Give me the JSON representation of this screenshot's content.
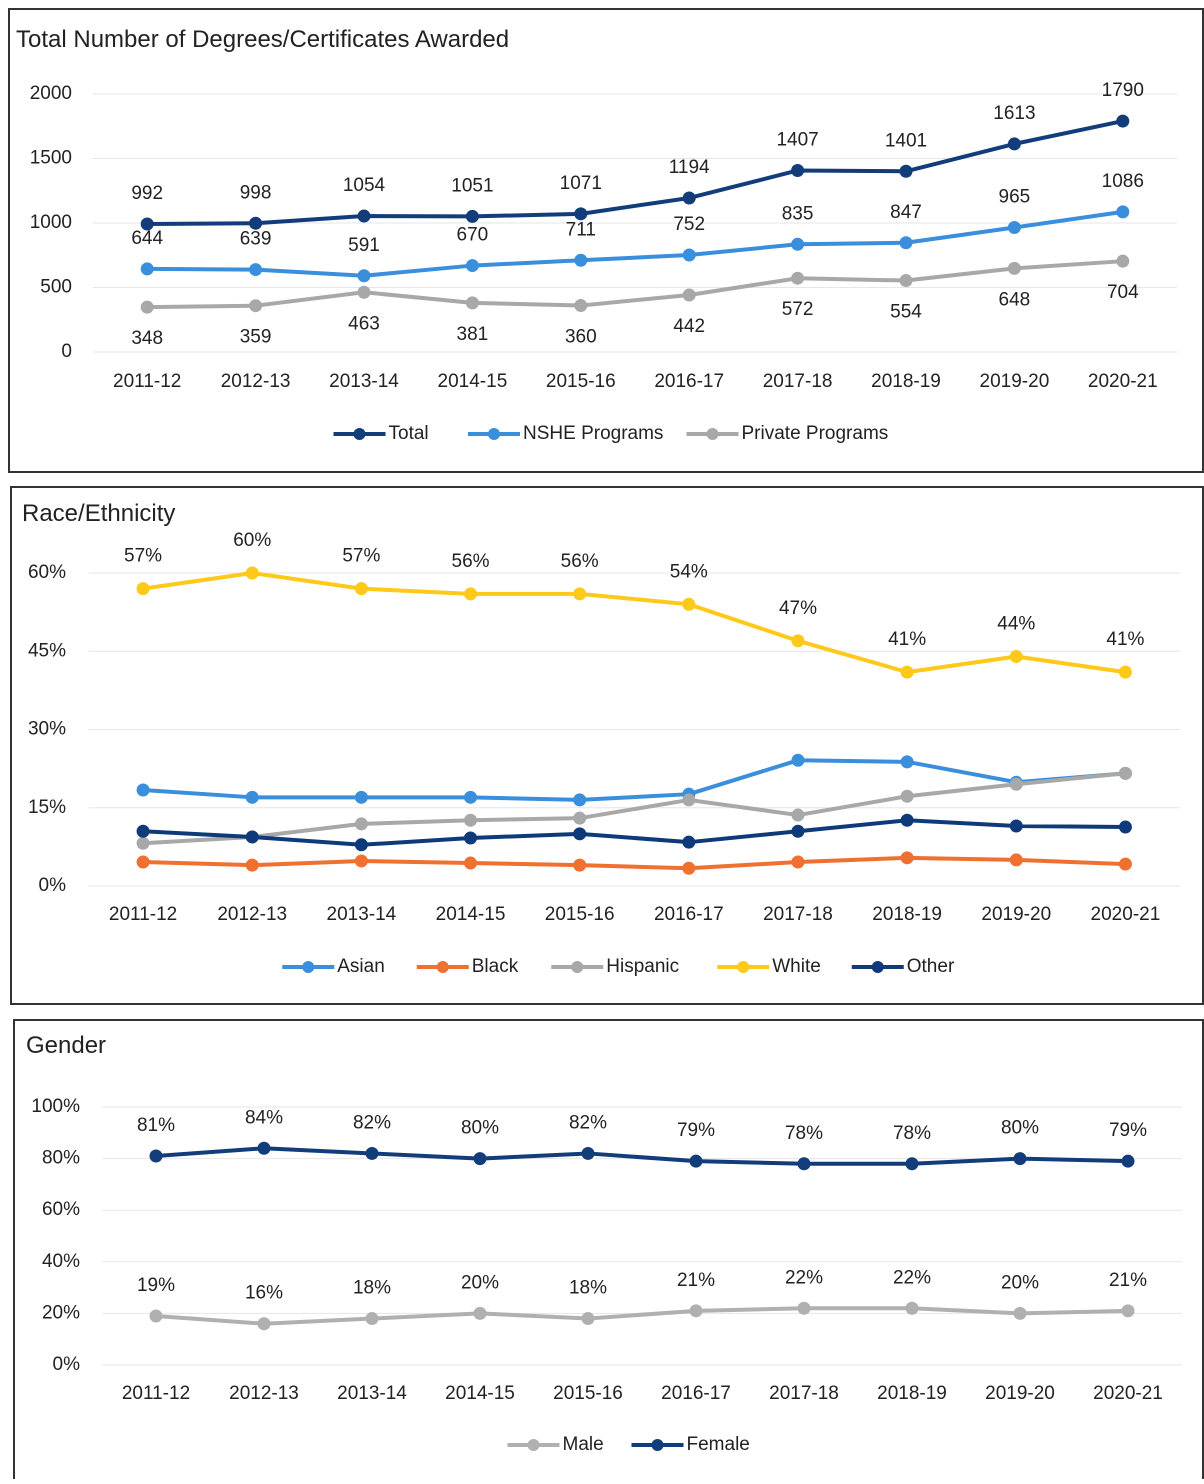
{
  "chart_data": [
    {
      "type": "line",
      "title": "Total Number of Degrees/Certificates Awarded",
      "categories": [
        "2011-12",
        "2012-13",
        "2013-14",
        "2014-15",
        "2015-16",
        "2016-17",
        "2017-18",
        "2018-19",
        "2019-20",
        "2020-21"
      ],
      "series": [
        {
          "name": "Total",
          "color": "#123d7a",
          "values": [
            992,
            998,
            1054,
            1051,
            1071,
            1194,
            1407,
            1401,
            1613,
            1790
          ]
        },
        {
          "name": "NSHE Programs",
          "color": "#3a8fdc",
          "values": [
            644,
            639,
            591,
            670,
            711,
            752,
            835,
            847,
            965,
            1086
          ]
        },
        {
          "name": "Private Programs",
          "color": "#a8a8a8",
          "values": [
            348,
            359,
            463,
            381,
            360,
            442,
            572,
            554,
            648,
            704
          ]
        }
      ],
      "ylim": [
        0,
        2000
      ],
      "yticks": [
        0,
        500,
        1000,
        1500,
        2000
      ],
      "grid": true,
      "legend": "bottom"
    },
    {
      "type": "line",
      "title": "Race/Ethnicity",
      "categories": [
        "2011-12",
        "2012-13",
        "2013-14",
        "2014-15",
        "2015-16",
        "2016-17",
        "2017-18",
        "2018-19",
        "2019-20",
        "2020-21"
      ],
      "series": [
        {
          "name": "Asian",
          "color": "#3a8fdc",
          "values": [
            18.4,
            17,
            17,
            17,
            16.5,
            17.6,
            24.1,
            23.8,
            19.9,
            21.6
          ]
        },
        {
          "name": "Black",
          "color": "#f07030",
          "values": [
            4.6,
            4.0,
            4.8,
            4.4,
            4.0,
            3.4,
            4.6,
            5.4,
            5.0,
            4.2
          ]
        },
        {
          "name": "Hispanic",
          "color": "#a8a8a8",
          "values": [
            8.2,
            9.4,
            11.9,
            12.6,
            13.0,
            16.5,
            13.6,
            17.2,
            19.5,
            21.6
          ]
        },
        {
          "name": "White",
          "color": "#ffc91a",
          "values": [
            57,
            60,
            57,
            56,
            56,
            54,
            47,
            41,
            44,
            41
          ],
          "value_labels": [
            "57%",
            "60%",
            "57%",
            "56%",
            "56%",
            "54%",
            "47%",
            "41%",
            "44%",
            "41%"
          ]
        },
        {
          "name": "Other",
          "color": "#0e3a7a",
          "values": [
            10.5,
            9.4,
            7.9,
            9.2,
            10,
            8.4,
            10.5,
            12.6,
            11.5,
            11.3
          ]
        }
      ],
      "ylim": [
        0,
        60
      ],
      "yticks": [
        {
          "value": 0,
          "label": "0%"
        },
        {
          "value": 15,
          "label": "15%"
        },
        {
          "value": 30,
          "label": "30%"
        },
        {
          "value": 45,
          "label": "45%"
        },
        {
          "value": 60,
          "label": "60%"
        }
      ],
      "grid": true,
      "legend": "bottom"
    },
    {
      "type": "line",
      "title": "Gender",
      "categories": [
        "2011-12",
        "2012-13",
        "2013-14",
        "2014-15",
        "2015-16",
        "2016-17",
        "2017-18",
        "2018-19",
        "2019-20",
        "2020-21"
      ],
      "series": [
        {
          "name": "Male",
          "color": "#b0b0b0",
          "values": [
            19,
            16,
            18,
            20,
            18,
            21,
            22,
            22,
            20,
            21
          ],
          "value_labels": [
            "19%",
            "16%",
            "18%",
            "20%",
            "18%",
            "21%",
            "22%",
            "22%",
            "20%",
            "21%"
          ]
        },
        {
          "name": "Female",
          "color": "#123d7a",
          "values": [
            81,
            84,
            82,
            80,
            82,
            79,
            78,
            78,
            80,
            79
          ],
          "value_labels": [
            "81%",
            "84%",
            "82%",
            "80%",
            "82%",
            "79%",
            "78%",
            "78%",
            "80%",
            "79%"
          ]
        }
      ],
      "ylim": [
        0,
        100
      ],
      "yticks": [
        {
          "value": 0,
          "label": "0%"
        },
        {
          "value": 20,
          "label": "20%"
        },
        {
          "value": 40,
          "label": "40%"
        },
        {
          "value": 60,
          "label": "60%"
        },
        {
          "value": 80,
          "label": "80%"
        },
        {
          "value": 100,
          "label": "100%"
        }
      ],
      "grid": true,
      "legend": "bottom"
    }
  ]
}
